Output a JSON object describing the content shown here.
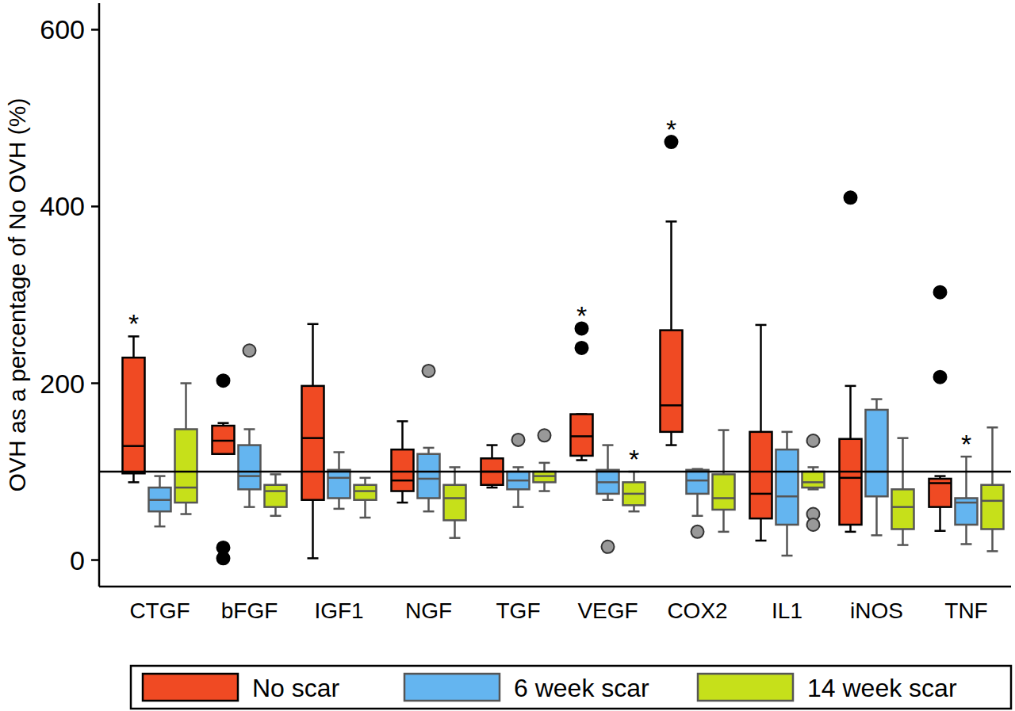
{
  "chart_data": {
    "type": "box",
    "y_label": "OVH as a percentage of No OVH (%)",
    "categories": [
      "CTGF",
      "bFGF",
      "IGF1",
      "NGF",
      "TGF",
      "VEGF",
      "COX2",
      "IL1",
      "iNOS",
      "TNF"
    ],
    "ylim": [
      -30,
      630
    ],
    "yticks": [
      0,
      200,
      400,
      600
    ],
    "reference_line": 100,
    "legend": "bottom",
    "series": [
      {
        "name": "No scar",
        "color": "#f04a23",
        "values": [
          {
            "low": 88,
            "q1": 98,
            "median": 129,
            "q3": 229,
            "high": 253,
            "outliers": []
          },
          {
            "low": 120,
            "q1": 120,
            "median": 135,
            "q3": 152,
            "high": 155,
            "outliers": [
              203,
              14,
              2
            ]
          },
          {
            "low": 2,
            "q1": 68,
            "median": 138,
            "q3": 197,
            "high": 267,
            "outliers": []
          },
          {
            "low": 65,
            "q1": 78,
            "median": 90,
            "q3": 125,
            "high": 157,
            "outliers": []
          },
          {
            "low": 82,
            "q1": 85,
            "median": 100,
            "q3": 115,
            "high": 130,
            "outliers": []
          },
          {
            "low": 113,
            "q1": 118,
            "median": 140,
            "q3": 165,
            "high": 165,
            "outliers": [
              262,
              240
            ]
          },
          {
            "low": 130,
            "q1": 145,
            "median": 175,
            "q3": 260,
            "high": 383,
            "outliers": [
              473
            ]
          },
          {
            "low": 22,
            "q1": 47,
            "median": 75,
            "q3": 145,
            "high": 266,
            "outliers": []
          },
          {
            "low": 32,
            "q1": 40,
            "median": 93,
            "q3": 137,
            "high": 197,
            "outliers": [
              410
            ]
          },
          {
            "low": 33,
            "q1": 60,
            "median": 87,
            "q3": 92,
            "high": 95,
            "outliers": [
              303,
              207
            ]
          }
        ]
      },
      {
        "name": "6 week scar",
        "color": "#64b5f0",
        "values": [
          {
            "low": 38,
            "q1": 55,
            "median": 68,
            "q3": 82,
            "high": 95,
            "outliers": []
          },
          {
            "low": 60,
            "q1": 80,
            "median": 95,
            "q3": 130,
            "high": 148,
            "outliers": [
              237
            ]
          },
          {
            "low": 58,
            "q1": 70,
            "median": 93,
            "q3": 102,
            "high": 122,
            "outliers": []
          },
          {
            "low": 55,
            "q1": 70,
            "median": 92,
            "q3": 120,
            "high": 127,
            "outliers": [
              214
            ]
          },
          {
            "low": 60,
            "q1": 80,
            "median": 90,
            "q3": 100,
            "high": 105,
            "outliers": [
              136
            ]
          },
          {
            "low": 68,
            "q1": 75,
            "median": 88,
            "q3": 102,
            "high": 130,
            "outliers": [
              15
            ]
          },
          {
            "low": 50,
            "q1": 75,
            "median": 90,
            "q3": 102,
            "high": 103,
            "outliers": [
              32
            ]
          },
          {
            "low": 5,
            "q1": 40,
            "median": 72,
            "q3": 125,
            "high": 145,
            "outliers": []
          },
          {
            "low": 28,
            "q1": 72,
            "median": 100,
            "q3": 170,
            "high": 182,
            "outliers": []
          },
          {
            "low": 18,
            "q1": 40,
            "median": 65,
            "q3": 70,
            "high": 117,
            "outliers": []
          }
        ]
      },
      {
        "name": "14 week scar",
        "color": "#c6e01a",
        "values": [
          {
            "low": 52,
            "q1": 65,
            "median": 82,
            "q3": 148,
            "high": 200,
            "outliers": []
          },
          {
            "low": 50,
            "q1": 60,
            "median": 78,
            "q3": 85,
            "high": 97,
            "outliers": []
          },
          {
            "low": 48,
            "q1": 68,
            "median": 78,
            "q3": 85,
            "high": 93,
            "outliers": []
          },
          {
            "low": 25,
            "q1": 45,
            "median": 70,
            "q3": 85,
            "high": 105,
            "outliers": []
          },
          {
            "low": 78,
            "q1": 88,
            "median": 95,
            "q3": 100,
            "high": 110,
            "outliers": [
              141
            ]
          },
          {
            "low": 55,
            "q1": 62,
            "median": 75,
            "q3": 88,
            "high": 100,
            "outliers": []
          },
          {
            "low": 32,
            "q1": 57,
            "median": 70,
            "q3": 97,
            "high": 147,
            "outliers": []
          },
          {
            "low": 80,
            "q1": 82,
            "median": 88,
            "q3": 100,
            "high": 105,
            "outliers": [
              135,
              52,
              40
            ]
          },
          {
            "low": 17,
            "q1": 35,
            "median": 60,
            "q3": 80,
            "high": 138,
            "outliers": []
          },
          {
            "low": 10,
            "q1": 35,
            "median": 67,
            "q3": 85,
            "high": 150,
            "outliers": []
          }
        ]
      }
    ],
    "annotations": [
      {
        "text": "*",
        "category": 0,
        "series": 0
      },
      {
        "text": "*",
        "category": 5,
        "series": 0
      },
      {
        "text": "*",
        "category": 5,
        "series": 2
      },
      {
        "text": "*",
        "category": 6,
        "series": 0
      },
      {
        "text": "*",
        "category": 9,
        "series": 1
      }
    ]
  }
}
